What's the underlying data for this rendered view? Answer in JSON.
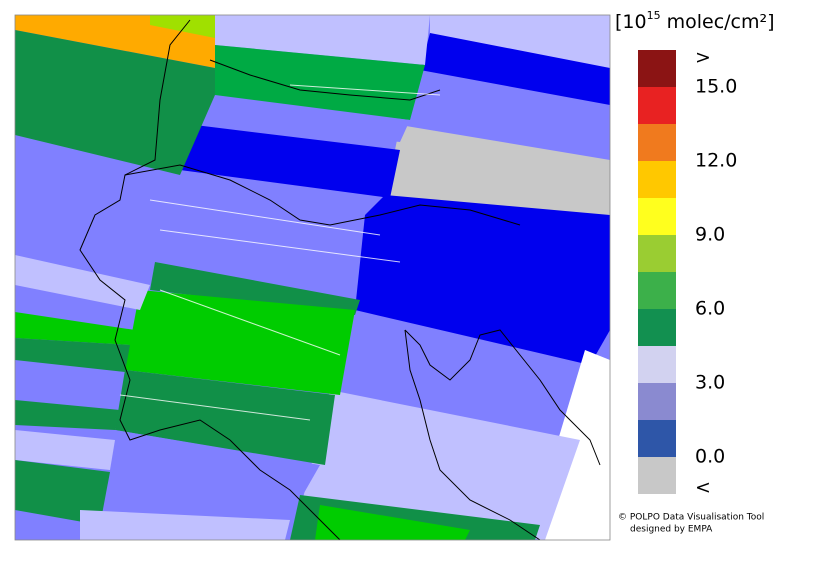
{
  "colorbar": {
    "unit_prefix": "[10",
    "unit_exponent": "15",
    "unit_suffix": "molec/cm²]",
    "labels": [
      ">",
      "15.0",
      "12.0",
      "9.0",
      "6.0",
      "3.0",
      "0.0",
      "<"
    ],
    "colors": [
      "#8b1414",
      "#e82222",
      "#f07a1e",
      "#ffc800",
      "#ffff1e",
      "#9acd32",
      "#3cb04a",
      "#129050",
      "#d2d2f0",
      "#8a8ad0",
      "#2e56a8",
      "#c8c8c8"
    ]
  },
  "credit": {
    "line1": "© POLPO Data Visualisation Tool",
    "line2": "designed by EMPA"
  }
}
